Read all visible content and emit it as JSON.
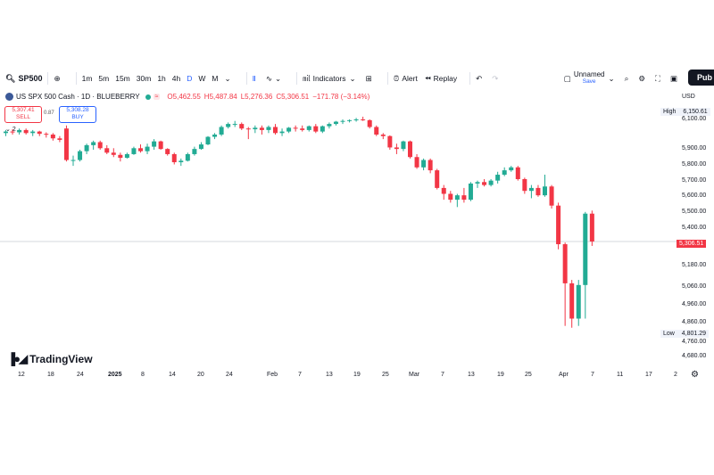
{
  "toolbar": {
    "symbol": "SP500",
    "intervals": [
      "1m",
      "5m",
      "15m",
      "30m",
      "1h",
      "4h",
      "D",
      "W",
      "M"
    ],
    "active_interval": "D",
    "indicators": "Indicators",
    "alert": "Alert",
    "replay": "Replay",
    "layout_name": "Unnamed",
    "save": "Save",
    "publish": "Pub"
  },
  "legend": {
    "title": "US SPX 500 Cash · 1D · BLUEBERRY",
    "open": "O5,462.55",
    "high": "H5,487.84",
    "low": "L5,276.36",
    "close": "C5,306.51",
    "change": "−171.78 (−3.14%)",
    "badge": "≈"
  },
  "trade": {
    "sell_price": "5,307.41",
    "sell_label": "SELL",
    "buy_price": "5,308.28",
    "buy_label": "BUY",
    "spread": "0.87",
    "collapse": "2"
  },
  "price_axis": {
    "currency": "USD",
    "ticks": [
      "6,100.00",
      "5,900.00",
      "5,800.00",
      "5,700.00",
      "5,600.00",
      "5,500.00",
      "5,400.00",
      "5,180.00",
      "5,060.00",
      "4,960.00",
      "4,860.00",
      "4,760.00",
      "4,680.00"
    ],
    "high_label": "High",
    "high_value": "6,150.61",
    "low_label": "Low",
    "low_value": "4,801.29",
    "last_value": "5,306.51"
  },
  "time_axis": [
    "12",
    "18",
    "24",
    "2025",
    "8",
    "14",
    "20",
    "24",
    "Feb",
    "7",
    "13",
    "19",
    "25",
    "Mar",
    "7",
    "13",
    "19",
    "25",
    "Apr",
    "7",
    "11",
    "17",
    "2"
  ],
  "brand": "TradingView",
  "colors": {
    "up": "#22ab94",
    "down": "#f23645",
    "accent": "#2962ff"
  },
  "chart_data": {
    "type": "candlestick",
    "y_axis": "USD",
    "candles": [
      [
        6010,
        6030,
        5990,
        6020
      ],
      [
        6020,
        6035,
        6000,
        6015
      ],
      [
        6015,
        6040,
        6000,
        6030
      ],
      [
        6030,
        6040,
        6000,
        6010
      ],
      [
        6010,
        6030,
        5990,
        6020
      ],
      [
        6020,
        6025,
        5990,
        6005
      ],
      [
        6005,
        6015,
        5980,
        6000
      ],
      [
        6000,
        6010,
        5960,
        5975
      ],
      [
        5975,
        5990,
        5950,
        5965
      ],
      [
        6040,
        6060,
        5820,
        5830
      ],
      [
        5830,
        5860,
        5790,
        5830
      ],
      [
        5830,
        5900,
        5820,
        5890
      ],
      [
        5890,
        5940,
        5870,
        5930
      ],
      [
        5930,
        5960,
        5900,
        5950
      ],
      [
        5950,
        5960,
        5900,
        5910
      ],
      [
        5910,
        5930,
        5870,
        5880
      ],
      [
        5880,
        5910,
        5850,
        5865
      ],
      [
        5865,
        5880,
        5820,
        5845
      ],
      [
        5845,
        5880,
        5840,
        5870
      ],
      [
        5870,
        5920,
        5865,
        5910
      ],
      [
        5910,
        5935,
        5880,
        5890
      ],
      [
        5890,
        5940,
        5870,
        5920
      ],
      [
        5920,
        5970,
        5900,
        5955
      ],
      [
        5955,
        5960,
        5900,
        5905
      ],
      [
        5905,
        5910,
        5860,
        5870
      ],
      [
        5870,
        5880,
        5800,
        5815
      ],
      [
        5815,
        5840,
        5790,
        5825
      ],
      [
        5825,
        5880,
        5820,
        5870
      ],
      [
        5870,
        5920,
        5860,
        5905
      ],
      [
        5905,
        5950,
        5900,
        5935
      ],
      [
        5935,
        5990,
        5930,
        5985
      ],
      [
        5985,
        6010,
        5970,
        6000
      ],
      [
        6000,
        6060,
        5990,
        6050
      ],
      [
        6050,
        6080,
        6040,
        6070
      ],
      [
        6070,
        6090,
        6050,
        6070
      ],
      [
        6070,
        6080,
        6030,
        6040
      ],
      [
        6040,
        6050,
        5970,
        6035
      ],
      [
        6035,
        6060,
        6010,
        6045
      ],
      [
        6045,
        6060,
        6000,
        6030
      ],
      [
        6030,
        6060,
        6010,
        6050
      ],
      [
        6050,
        6070,
        6000,
        6010
      ],
      [
        6010,
        6040,
        5990,
        6020
      ],
      [
        6020,
        6050,
        6010,
        6045
      ],
      [
        6045,
        6060,
        6020,
        6040
      ],
      [
        6040,
        6060,
        6020,
        6030
      ],
      [
        6030,
        6060,
        6020,
        6055
      ],
      [
        6055,
        6070,
        6010,
        6020
      ],
      [
        6020,
        6060,
        6010,
        6055
      ],
      [
        6055,
        6080,
        6040,
        6070
      ],
      [
        6070,
        6090,
        6060,
        6085
      ],
      [
        6085,
        6100,
        6070,
        6090
      ],
      [
        6090,
        6100,
        6080,
        6095
      ],
      [
        6095,
        6110,
        6085,
        6100
      ],
      [
        6100,
        6118,
        6090,
        6095
      ],
      [
        6095,
        6100,
        6040,
        6050
      ],
      [
        6050,
        6060,
        5990,
        6000
      ],
      [
        6000,
        6010,
        5970,
        5990
      ],
      [
        5990,
        5995,
        5900,
        5915
      ],
      [
        5915,
        5940,
        5870,
        5905
      ],
      [
        5905,
        5960,
        5890,
        5955
      ],
      [
        5955,
        5960,
        5840,
        5850
      ],
      [
        5850,
        5870,
        5770,
        5780
      ],
      [
        5780,
        5840,
        5760,
        5830
      ],
      [
        5830,
        5840,
        5740,
        5760
      ],
      [
        5760,
        5770,
        5630,
        5640
      ],
      [
        5640,
        5660,
        5560,
        5600
      ],
      [
        5600,
        5620,
        5540,
        5560
      ],
      [
        5560,
        5600,
        5510,
        5590
      ],
      [
        5590,
        5640,
        5540,
        5560
      ],
      [
        5560,
        5680,
        5550,
        5670
      ],
      [
        5670,
        5690,
        5640,
        5680
      ],
      [
        5680,
        5700,
        5650,
        5660
      ],
      [
        5660,
        5700,
        5650,
        5690
      ],
      [
        5690,
        5750,
        5670,
        5730
      ],
      [
        5730,
        5780,
        5720,
        5760
      ],
      [
        5760,
        5790,
        5750,
        5780
      ],
      [
        5780,
        5790,
        5690,
        5700
      ],
      [
        5700,
        5710,
        5600,
        5620
      ],
      [
        5620,
        5660,
        5570,
        5640
      ],
      [
        5640,
        5660,
        5580,
        5590
      ],
      [
        5590,
        5730,
        5580,
        5650
      ],
      [
        5650,
        5660,
        5500,
        5520
      ],
      [
        5520,
        5540,
        5260,
        5290
      ],
      [
        5290,
        5300,
        4820,
        5060
      ],
      [
        5060,
        5080,
        4810,
        4860
      ],
      [
        4860,
        5080,
        4820,
        5050
      ],
      [
        5050,
        5480,
        4860,
        5470
      ],
      [
        5470,
        5488,
        5280,
        5306
      ]
    ]
  }
}
